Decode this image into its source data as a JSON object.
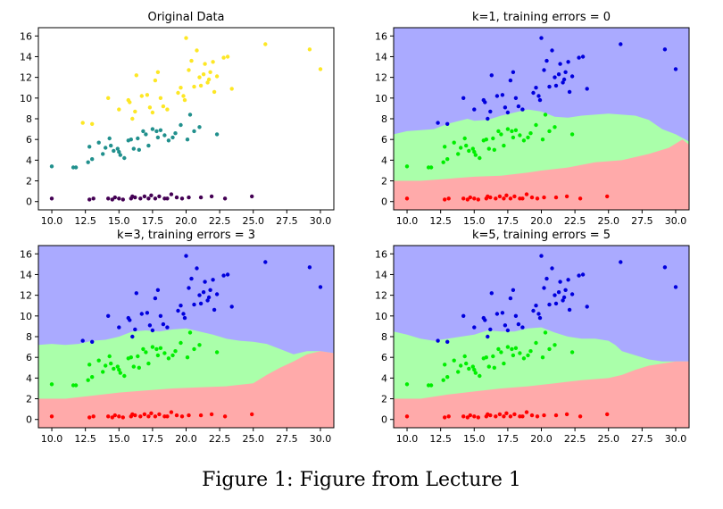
{
  "caption": "Figure 1: Figure from Lecture 1",
  "colors": {
    "class0_point": "#440154",
    "class1_point": "#21908d",
    "class2_point": "#fde725",
    "region_red": "#ffaaaa",
    "region_green": "#aaffaa",
    "region_blue": "#aaaaff",
    "point_red": "#ff0000",
    "point_green": "#00ee00",
    "point_blue": "#0000dd"
  },
  "chart_data": [
    {
      "type": "scatter",
      "title": "Original Data",
      "xlim": [
        9,
        31
      ],
      "ylim": [
        -0.8,
        16.8
      ],
      "xticks": [
        "10.0",
        "12.5",
        "15.0",
        "17.5",
        "20.0",
        "22.5",
        "25.0",
        "27.5",
        "30.0"
      ],
      "yticks": [
        "0",
        "2",
        "4",
        "6",
        "8",
        "10",
        "12",
        "14",
        "16"
      ],
      "background": "none",
      "point_palette": "viridis"
    },
    {
      "type": "scatter",
      "title": "k=1, training errors = 0",
      "xlim": [
        9,
        31
      ],
      "ylim": [
        -0.8,
        16.8
      ],
      "xticks": [
        "10.0",
        "12.5",
        "15.0",
        "17.5",
        "20.0",
        "22.5",
        "25.0",
        "27.5",
        "30.0"
      ],
      "yticks": [
        "0",
        "2",
        "4",
        "6",
        "8",
        "10",
        "12",
        "14",
        "16"
      ],
      "background": "decision-regions",
      "point_palette": "rgb",
      "boundary_red_green": [
        [
          9,
          2.0
        ],
        [
          11,
          2.0
        ],
        [
          13,
          2.2
        ],
        [
          15,
          2.4
        ],
        [
          17,
          2.5
        ],
        [
          19,
          2.8
        ],
        [
          20,
          3.0
        ],
        [
          22,
          3.3
        ],
        [
          24,
          3.8
        ],
        [
          26,
          4.0
        ],
        [
          28,
          4.6
        ],
        [
          29.5,
          5.2
        ],
        [
          30.5,
          6.0
        ],
        [
          31,
          5.5
        ]
      ],
      "boundary_green_blue": [
        [
          9,
          6.5
        ],
        [
          10,
          6.8
        ],
        [
          11,
          6.9
        ],
        [
          12,
          7.0
        ],
        [
          13,
          7.5
        ],
        [
          14.5,
          8.0
        ],
        [
          15,
          7.8
        ],
        [
          16,
          7.9
        ],
        [
          17,
          8.3
        ],
        [
          18,
          8.6
        ],
        [
          19,
          8.9
        ],
        [
          20,
          8.7
        ],
        [
          21,
          8.2
        ],
        [
          22,
          8.1
        ],
        [
          23,
          8.3
        ],
        [
          24,
          8.4
        ],
        [
          25,
          8.5
        ],
        [
          27,
          8.3
        ],
        [
          28,
          7.9
        ],
        [
          29,
          7.0
        ],
        [
          30,
          6.5
        ],
        [
          31,
          5.8
        ]
      ]
    },
    {
      "type": "scatter",
      "title": "k=3, training errors = 3",
      "xlim": [
        9,
        31
      ],
      "ylim": [
        -0.8,
        16.8
      ],
      "xticks": [
        "10.0",
        "12.5",
        "15.0",
        "17.5",
        "20.0",
        "22.5",
        "25.0",
        "27.5",
        "30.0"
      ],
      "yticks": [
        "0",
        "2",
        "4",
        "6",
        "8",
        "10",
        "12",
        "14",
        "16"
      ],
      "background": "decision-regions",
      "point_palette": "rgb",
      "boundary_red_green": [
        [
          9,
          2.0
        ],
        [
          11,
          2.0
        ],
        [
          13,
          2.3
        ],
        [
          15,
          2.6
        ],
        [
          17,
          2.8
        ],
        [
          19,
          3.0
        ],
        [
          21,
          3.1
        ],
        [
          23,
          3.2
        ],
        [
          25,
          3.5
        ],
        [
          26,
          4.3
        ],
        [
          27,
          5.0
        ],
        [
          28,
          5.6
        ],
        [
          29,
          6.3
        ],
        [
          30,
          6.6
        ],
        [
          31,
          6.4
        ]
      ],
      "boundary_green_blue": [
        [
          9,
          7.2
        ],
        [
          10,
          7.3
        ],
        [
          11,
          7.2
        ],
        [
          12,
          7.3
        ],
        [
          13,
          7.6
        ],
        [
          14,
          7.7
        ],
        [
          15,
          8.0
        ],
        [
          16,
          8.5
        ],
        [
          17,
          8.6
        ],
        [
          18,
          8.5
        ],
        [
          19,
          8.7
        ],
        [
          20,
          8.8
        ],
        [
          21,
          8.5
        ],
        [
          22,
          8.2
        ],
        [
          23,
          7.8
        ],
        [
          24,
          7.6
        ],
        [
          25,
          7.5
        ],
        [
          26,
          7.3
        ],
        [
          27,
          6.8
        ],
        [
          28,
          6.3
        ],
        [
          29,
          6.6
        ],
        [
          30,
          6.6
        ],
        [
          31,
          6.4
        ]
      ]
    },
    {
      "type": "scatter",
      "title": "k=5, training errors = 5",
      "xlim": [
        9,
        31
      ],
      "ylim": [
        -0.8,
        16.8
      ],
      "xticks": [
        "10.0",
        "12.5",
        "15.0",
        "17.5",
        "20.0",
        "22.5",
        "25.0",
        "27.5",
        "30.0"
      ],
      "yticks": [
        "0",
        "2",
        "4",
        "6",
        "8",
        "10",
        "12",
        "14",
        "16"
      ],
      "background": "decision-regions",
      "point_palette": "rgb",
      "boundary_red_green": [
        [
          9,
          2.0
        ],
        [
          11,
          2.0
        ],
        [
          13,
          2.4
        ],
        [
          15,
          2.7
        ],
        [
          17,
          3.0
        ],
        [
          19,
          3.2
        ],
        [
          21,
          3.5
        ],
        [
          23,
          3.8
        ],
        [
          25,
          4.0
        ],
        [
          26,
          4.3
        ],
        [
          27,
          4.8
        ],
        [
          28,
          5.2
        ],
        [
          29,
          5.4
        ],
        [
          30,
          5.6
        ],
        [
          31,
          5.6
        ]
      ],
      "boundary_green_blue": [
        [
          9,
          8.5
        ],
        [
          10,
          8.2
        ],
        [
          11,
          7.8
        ],
        [
          12,
          7.6
        ],
        [
          13,
          7.8
        ],
        [
          14,
          8.0
        ],
        [
          15,
          8.2
        ],
        [
          16,
          8.6
        ],
        [
          17,
          8.5
        ],
        [
          18,
          8.5
        ],
        [
          19,
          8.8
        ],
        [
          20,
          8.9
        ],
        [
          21,
          8.4
        ],
        [
          22,
          8.0
        ],
        [
          23,
          7.8
        ],
        [
          24,
          7.8
        ],
        [
          25,
          7.6
        ],
        [
          25.5,
          7.2
        ],
        [
          26,
          6.6
        ],
        [
          27,
          6.2
        ],
        [
          28,
          5.8
        ],
        [
          29,
          5.6
        ],
        [
          30,
          5.6
        ],
        [
          31,
          5.6
        ]
      ]
    }
  ],
  "points": [
    {
      "x": 10.0,
      "y": 0.3,
      "c": 0
    },
    {
      "x": 12.8,
      "y": 0.2,
      "c": 0
    },
    {
      "x": 13.1,
      "y": 0.3,
      "c": 0
    },
    {
      "x": 14.2,
      "y": 0.3,
      "c": 0
    },
    {
      "x": 14.5,
      "y": 0.2,
      "c": 0
    },
    {
      "x": 14.7,
      "y": 0.4,
      "c": 0
    },
    {
      "x": 15.0,
      "y": 0.3,
      "c": 0
    },
    {
      "x": 15.3,
      "y": 0.2,
      "c": 0
    },
    {
      "x": 15.9,
      "y": 0.3,
      "c": 0
    },
    {
      "x": 16.2,
      "y": 0.4,
      "c": 0
    },
    {
      "x": 16.6,
      "y": 0.3,
      "c": 0
    },
    {
      "x": 16.9,
      "y": 0.5,
      "c": 0
    },
    {
      "x": 17.2,
      "y": 0.3,
      "c": 0
    },
    {
      "x": 17.4,
      "y": 0.6,
      "c": 0
    },
    {
      "x": 17.7,
      "y": 0.3,
      "c": 0
    },
    {
      "x": 18.0,
      "y": 0.5,
      "c": 0
    },
    {
      "x": 18.4,
      "y": 0.3,
      "c": 0
    },
    {
      "x": 18.9,
      "y": 0.7,
      "c": 0
    },
    {
      "x": 19.3,
      "y": 0.4,
      "c": 0
    },
    {
      "x": 19.7,
      "y": 0.3,
      "c": 0
    },
    {
      "x": 20.2,
      "y": 0.4,
      "c": 0
    },
    {
      "x": 21.1,
      "y": 0.4,
      "c": 0
    },
    {
      "x": 21.9,
      "y": 0.5,
      "c": 0
    },
    {
      "x": 22.9,
      "y": 0.3,
      "c": 0
    },
    {
      "x": 24.9,
      "y": 0.5,
      "c": 0
    },
    {
      "x": 18.6,
      "y": 0.3,
      "c": 0
    },
    {
      "x": 16.0,
      "y": 0.5,
      "c": 0
    },
    {
      "x": 10.0,
      "y": 3.4,
      "c": 1
    },
    {
      "x": 11.6,
      "y": 3.3,
      "c": 1
    },
    {
      "x": 11.8,
      "y": 3.3,
      "c": 1
    },
    {
      "x": 12.7,
      "y": 3.8,
      "c": 1
    },
    {
      "x": 13.0,
      "y": 4.1,
      "c": 1
    },
    {
      "x": 12.8,
      "y": 5.3,
      "c": 1
    },
    {
      "x": 13.5,
      "y": 5.7,
      "c": 1
    },
    {
      "x": 14.0,
      "y": 5.2,
      "c": 1
    },
    {
      "x": 14.4,
      "y": 5.4,
      "c": 1
    },
    {
      "x": 14.3,
      "y": 6.1,
      "c": 1
    },
    {
      "x": 14.9,
      "y": 5.1,
      "c": 1
    },
    {
      "x": 15.1,
      "y": 4.5,
      "c": 1
    },
    {
      "x": 15.4,
      "y": 4.2,
      "c": 1
    },
    {
      "x": 15.7,
      "y": 5.9,
      "c": 1
    },
    {
      "x": 16.1,
      "y": 5.1,
      "c": 1
    },
    {
      "x": 16.4,
      "y": 6.1,
      "c": 1
    },
    {
      "x": 16.8,
      "y": 6.8,
      "c": 1
    },
    {
      "x": 17.2,
      "y": 5.4,
      "c": 1
    },
    {
      "x": 17.5,
      "y": 7.0,
      "c": 1
    },
    {
      "x": 17.9,
      "y": 6.2,
      "c": 1
    },
    {
      "x": 18.4,
      "y": 6.4,
      "c": 1
    },
    {
      "x": 18.7,
      "y": 5.9,
      "c": 1
    },
    {
      "x": 19.2,
      "y": 6.6,
      "c": 1
    },
    {
      "x": 19.6,
      "y": 7.4,
      "c": 1
    },
    {
      "x": 20.1,
      "y": 6.0,
      "c": 1
    },
    {
      "x": 20.3,
      "y": 8.4,
      "c": 1
    },
    {
      "x": 20.6,
      "y": 6.8,
      "c": 1
    },
    {
      "x": 21.0,
      "y": 7.2,
      "c": 1
    },
    {
      "x": 22.3,
      "y": 6.5,
      "c": 1
    },
    {
      "x": 15.9,
      "y": 6.0,
      "c": 1
    },
    {
      "x": 15.0,
      "y": 4.8,
      "c": 1
    },
    {
      "x": 13.8,
      "y": 4.6,
      "c": 1
    },
    {
      "x": 17.0,
      "y": 6.5,
      "c": 1
    },
    {
      "x": 18.1,
      "y": 6.9,
      "c": 1
    },
    {
      "x": 16.5,
      "y": 5.0,
      "c": 1
    },
    {
      "x": 14.6,
      "y": 4.9,
      "c": 1
    },
    {
      "x": 19.0,
      "y": 6.2,
      "c": 1
    },
    {
      "x": 17.8,
      "y": 6.8,
      "c": 1
    },
    {
      "x": 12.3,
      "y": 7.6,
      "c": 2
    },
    {
      "x": 13.0,
      "y": 7.5,
      "c": 2
    },
    {
      "x": 14.2,
      "y": 10.0,
      "c": 2
    },
    {
      "x": 15.0,
      "y": 8.9,
      "c": 2
    },
    {
      "x": 15.7,
      "y": 9.8,
      "c": 2
    },
    {
      "x": 15.8,
      "y": 9.6,
      "c": 2
    },
    {
      "x": 16.0,
      "y": 8.0,
      "c": 2
    },
    {
      "x": 16.2,
      "y": 8.7,
      "c": 2
    },
    {
      "x": 16.3,
      "y": 12.2,
      "c": 2
    },
    {
      "x": 16.7,
      "y": 10.2,
      "c": 2
    },
    {
      "x": 17.1,
      "y": 10.3,
      "c": 2
    },
    {
      "x": 17.3,
      "y": 9.1,
      "c": 2
    },
    {
      "x": 17.5,
      "y": 8.6,
      "c": 2
    },
    {
      "x": 17.7,
      "y": 11.7,
      "c": 2
    },
    {
      "x": 17.9,
      "y": 12.5,
      "c": 2
    },
    {
      "x": 18.1,
      "y": 10.0,
      "c": 2
    },
    {
      "x": 18.3,
      "y": 9.2,
      "c": 2
    },
    {
      "x": 18.6,
      "y": 8.9,
      "c": 2
    },
    {
      "x": 19.4,
      "y": 10.5,
      "c": 2
    },
    {
      "x": 19.6,
      "y": 11.0,
      "c": 2
    },
    {
      "x": 19.8,
      "y": 10.2,
      "c": 2
    },
    {
      "x": 20.0,
      "y": 15.8,
      "c": 2
    },
    {
      "x": 20.2,
      "y": 12.7,
      "c": 2
    },
    {
      "x": 20.4,
      "y": 13.6,
      "c": 2
    },
    {
      "x": 20.6,
      "y": 11.1,
      "c": 2
    },
    {
      "x": 20.8,
      "y": 14.6,
      "c": 2
    },
    {
      "x": 21.0,
      "y": 12.0,
      "c": 2
    },
    {
      "x": 21.1,
      "y": 11.2,
      "c": 2
    },
    {
      "x": 21.3,
      "y": 12.3,
      "c": 2
    },
    {
      "x": 21.4,
      "y": 13.3,
      "c": 2
    },
    {
      "x": 21.6,
      "y": 11.5,
      "c": 2
    },
    {
      "x": 21.8,
      "y": 12.5,
      "c": 2
    },
    {
      "x": 22.0,
      "y": 13.5,
      "c": 2
    },
    {
      "x": 22.1,
      "y": 10.6,
      "c": 2
    },
    {
      "x": 22.3,
      "y": 12.1,
      "c": 2
    },
    {
      "x": 22.8,
      "y": 13.9,
      "c": 2
    },
    {
      "x": 23.1,
      "y": 14.0,
      "c": 2
    },
    {
      "x": 23.4,
      "y": 10.9,
      "c": 2
    },
    {
      "x": 25.9,
      "y": 15.2,
      "c": 2
    },
    {
      "x": 29.2,
      "y": 14.7,
      "c": 2
    },
    {
      "x": 30.0,
      "y": 12.8,
      "c": 2
    },
    {
      "x": 19.9,
      "y": 9.8,
      "c": 2
    },
    {
      "x": 21.7,
      "y": 11.8,
      "c": 2
    }
  ]
}
